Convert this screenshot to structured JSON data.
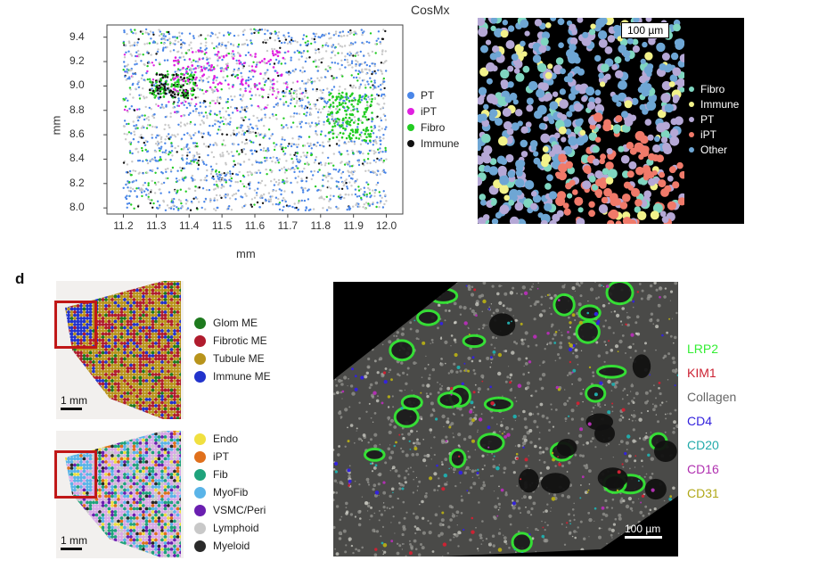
{
  "cosmx": {
    "title": "CosMx",
    "xlabel": "mm",
    "ylabel": "mm",
    "legend": [
      {
        "label": "PT",
        "color": "#4a86e8"
      },
      {
        "label": "iPT",
        "color": "#e020e0"
      },
      {
        "label": "Fibro",
        "color": "#22cc22"
      },
      {
        "label": "Immune",
        "color": "#111111"
      }
    ],
    "scale_label": "100 µm",
    "zoom_legend": [
      {
        "label": "Fibro",
        "color": "#7fd6c0"
      },
      {
        "label": "Immune",
        "color": "#f2f28a"
      },
      {
        "label": "PT",
        "color": "#b5a8d6"
      },
      {
        "label": "iPT",
        "color": "#f07a6a"
      },
      {
        "label": "Other",
        "color": "#6ea6d4"
      }
    ]
  },
  "chart_data": {
    "type": "scatter",
    "title": "CosMx",
    "xlabel": "mm",
    "ylabel": "mm",
    "xlim": [
      11.15,
      12.05
    ],
    "ylim": [
      7.95,
      9.5
    ],
    "xticks": [
      "11.2",
      "11.3",
      "11.4",
      "11.5",
      "11.6",
      "11.7",
      "11.8",
      "11.9",
      "12.0"
    ],
    "yticks": [
      "9.4",
      "9.2",
      "9.0",
      "8.8",
      "8.6",
      "8.4",
      "8.2",
      "8.0"
    ],
    "series": [
      {
        "name": "PT",
        "color": "#4a86e8"
      },
      {
        "name": "iPT",
        "color": "#e020e0"
      },
      {
        "name": "Fibro",
        "color": "#22cc22"
      },
      {
        "name": "Immune",
        "color": "#111111"
      }
    ],
    "legend_position": "right"
  },
  "panel_d": {
    "letter": "d",
    "top_legend": [
      {
        "label": "Glom ME",
        "color": "#1e7a1e"
      },
      {
        "label": "Fibrotic ME",
        "color": "#b01c2e"
      },
      {
        "label": "Tubule ME",
        "color": "#b8941c"
      },
      {
        "label": "Immune ME",
        "color": "#2233cc"
      }
    ],
    "bottom_legend": [
      {
        "label": "Endo",
        "color": "#f0e040"
      },
      {
        "label": "iPT",
        "color": "#e0701c"
      },
      {
        "label": "Fib",
        "color": "#1fa37c"
      },
      {
        "label": "MyoFib",
        "color": "#5ab4e8"
      },
      {
        "label": "VSMC/Peri",
        "color": "#6a1fb0"
      },
      {
        "label": "Lymphoid",
        "color": "#c8c8c8"
      },
      {
        "label": "Myeloid",
        "color": "#2a2a2a"
      }
    ],
    "scale_top": "1 mm",
    "scale_bottom": "1 mm",
    "markers": [
      {
        "label": "LRP2",
        "color": "#33ee33"
      },
      {
        "label": "KIM1",
        "color": "#cc2233"
      },
      {
        "label": "Collagen",
        "color": "#666666"
      },
      {
        "label": "CD4",
        "color": "#3322dd"
      },
      {
        "label": "CD20",
        "color": "#22aaaa"
      },
      {
        "label": "CD16",
        "color": "#b030b0"
      },
      {
        "label": "CD31",
        "color": "#b0a818"
      }
    ],
    "scale_fluor": "100 µm"
  }
}
